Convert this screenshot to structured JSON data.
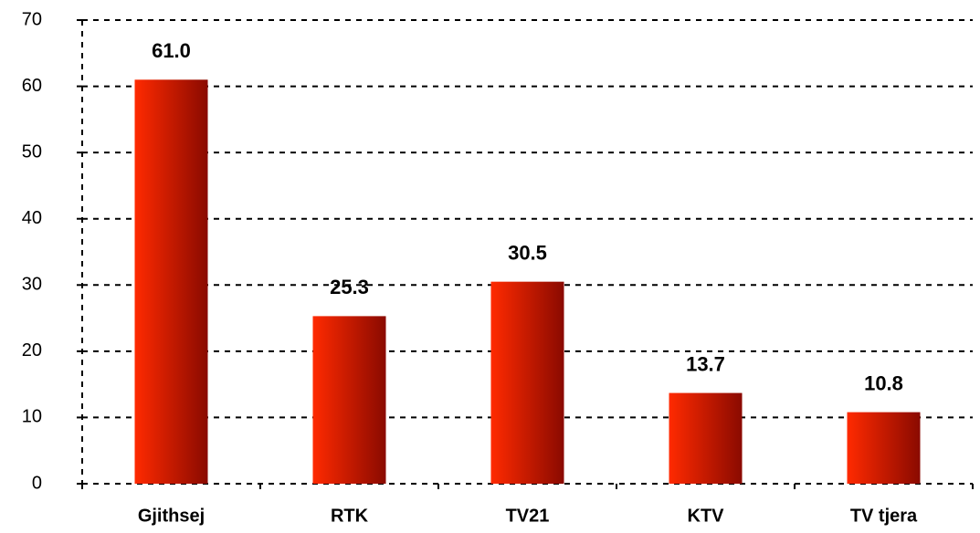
{
  "chart_data": {
    "type": "bar",
    "categories": [
      "Gjithsej",
      "RTK",
      "TV21",
      "KTV",
      "TV tjera"
    ],
    "values": [
      61.0,
      25.3,
      30.5,
      13.7,
      10.8
    ],
    "value_labels": [
      "61.0",
      "25.3",
      "30.5",
      "13.7",
      "10.8"
    ],
    "colors": [
      "#ff2a00",
      "#8a0a00"
    ],
    "ylim": [
      0,
      70
    ],
    "yticks": [
      0,
      10,
      20,
      30,
      40,
      50,
      60,
      70
    ],
    "grid": true
  }
}
